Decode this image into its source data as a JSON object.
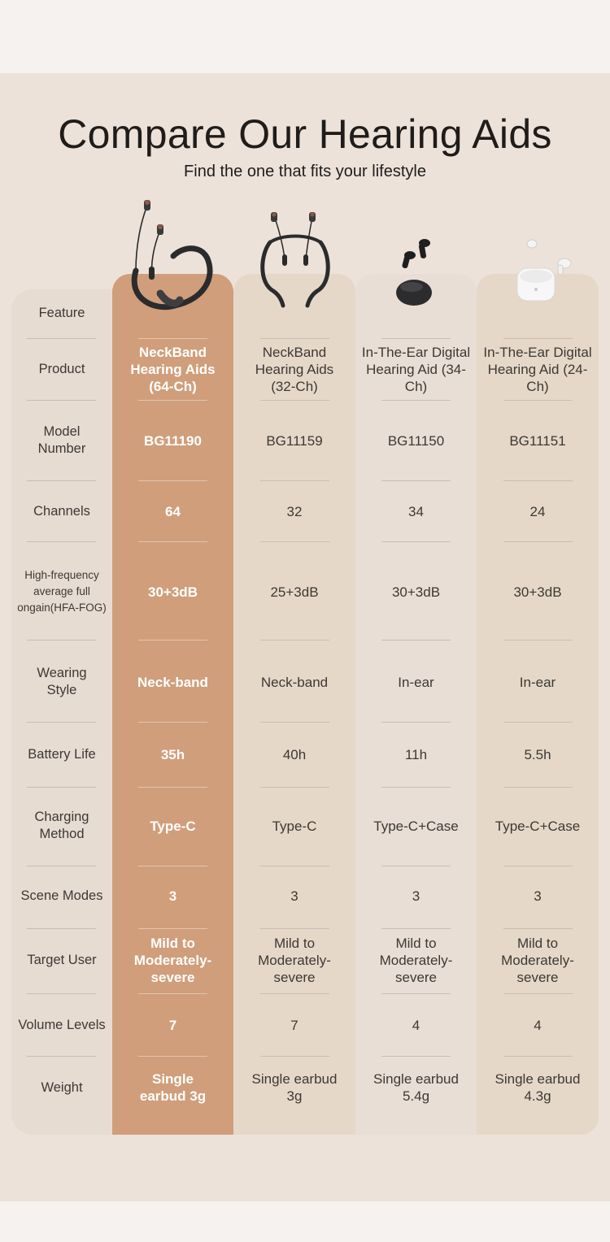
{
  "header": {
    "title": "Compare Our Hearing Aids",
    "subtitle": "Find the one that fits your lifestyle"
  },
  "colors": {
    "highlight_column": "#d09e7b",
    "panel": "#ece2da",
    "text": "#3d3834"
  },
  "products": [
    {
      "image": "neckband-64ch-image"
    },
    {
      "image": "neckband-32ch-image"
    },
    {
      "image": "in-ear-34ch-image"
    },
    {
      "image": "in-ear-24ch-image"
    }
  ],
  "table": {
    "header_label": "Feature",
    "rows": [
      {
        "feature": "Product",
        "values": [
          "NeckBand Hearing Aids (64-Ch)",
          "NeckBand Hearing Aids (32-Ch)",
          "In-The-Ear Digital Hearing Aid (34-Ch)",
          "In-The-Ear Digital Hearing Aid (24-Ch)"
        ]
      },
      {
        "feature": "Model Number",
        "values": [
          "BG11190",
          "BG11159",
          "BG11150",
          "BG11151"
        ]
      },
      {
        "feature": "Channels",
        "values": [
          "64",
          "32",
          "34",
          "24"
        ]
      },
      {
        "feature": "High-frequency average full ongain(HFA-FOG)",
        "values": [
          "30+3dB",
          "25+3dB",
          "30+3dB",
          "30+3dB"
        ]
      },
      {
        "feature": "Wearing Style",
        "values": [
          "Neck-band",
          "Neck-band",
          "In-ear",
          "In-ear"
        ]
      },
      {
        "feature": "Battery Life",
        "values": [
          "35h",
          "40h",
          "11h",
          "5.5h"
        ]
      },
      {
        "feature": "Charging Method",
        "values": [
          "Type-C",
          "Type-C",
          "Type-C+Case",
          "Type-C+Case"
        ]
      },
      {
        "feature": "Scene Modes",
        "values": [
          "3",
          "3",
          "3",
          "3"
        ]
      },
      {
        "feature": "Target User",
        "values": [
          "Mild to Moderately-severe",
          "Mild to Moderately-severe",
          "Mild to Moderately-severe",
          "Mild to Moderately-severe"
        ]
      },
      {
        "feature": "Volume Levels",
        "values": [
          "7",
          "7",
          "4",
          "4"
        ]
      },
      {
        "feature": "Weight",
        "values": [
          "Single earbud 3g",
          "Single earbud 3g",
          "Single earbud 5.4g",
          "Single earbud 4.3g"
        ]
      }
    ]
  }
}
